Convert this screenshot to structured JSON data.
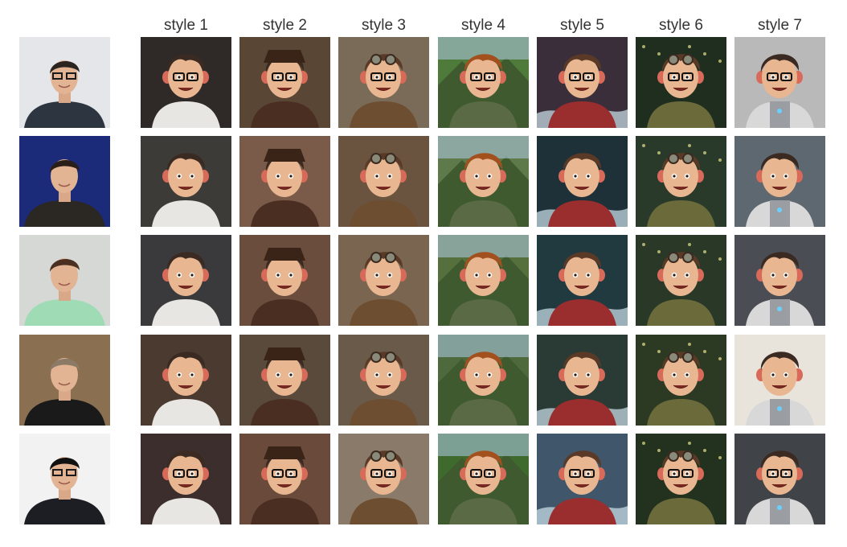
{
  "header": {
    "styles": [
      "style 1",
      "style 2",
      "style 3",
      "style 4",
      "style 5",
      "style 6",
      "style 7"
    ]
  },
  "rows": [
    {
      "subject": "portrait-1",
      "style_bg": [
        "#2f2a28",
        "#5a4634",
        "#7a6a58",
        "#4e7a3a",
        "#3a2e3a",
        "#1f2e1f",
        "#b9b9b9"
      ]
    },
    {
      "subject": "portrait-2",
      "style_bg": [
        "#3d3b38",
        "#7a5a48",
        "#6a5440",
        "#5f7a4a",
        "#1e3138",
        "#2a3a2a",
        "#5e6870"
      ]
    },
    {
      "subject": "portrait-3",
      "style_bg": [
        "#3a3a3c",
        "#6a4d3c",
        "#7a6650",
        "#55703d",
        "#203a40",
        "#2a3828",
        "#4a4e54"
      ]
    },
    {
      "subject": "portrait-4",
      "style_bg": [
        "#4a3a30",
        "#5a4a3c",
        "#6a5a4a",
        "#4e6a3c",
        "#2a3a34",
        "#2c3a24",
        "#e8e4dc"
      ]
    },
    {
      "subject": "portrait-5",
      "style_bg": [
        "#3c2e2c",
        "#6a4a3a",
        "#8a7a6a",
        "#3e6a2e",
        "#40566a",
        "#22321e",
        "#404448"
      ]
    }
  ],
  "photo_bg": [
    "#e4e6ea",
    "#1c2a7a",
    "#d6d8d6",
    "#8a7050",
    "#f2f2f2"
  ],
  "photo_shirt": [
    "#2d3540",
    "#2b2723",
    "#9fdcb6",
    "#1a1a1a",
    "#1c1e24"
  ],
  "photo_hair": [
    "#2a2420",
    "#2a1e18",
    "#4a3020",
    "#8a7a66",
    "#111111"
  ],
  "cartoon_hair": [
    "#3a2a22",
    "#a3501f",
    "#5a3a26",
    "#1e1c1c"
  ],
  "style_hair": [
    0,
    0,
    2,
    1,
    2,
    2,
    0
  ],
  "style_outfit": [
    "#e8e6e2",
    "#4a2e22",
    "#6e4e30",
    "#5a6a44",
    "#9a2e2e",
    "#6a6a3a",
    "#d8d8d8"
  ]
}
